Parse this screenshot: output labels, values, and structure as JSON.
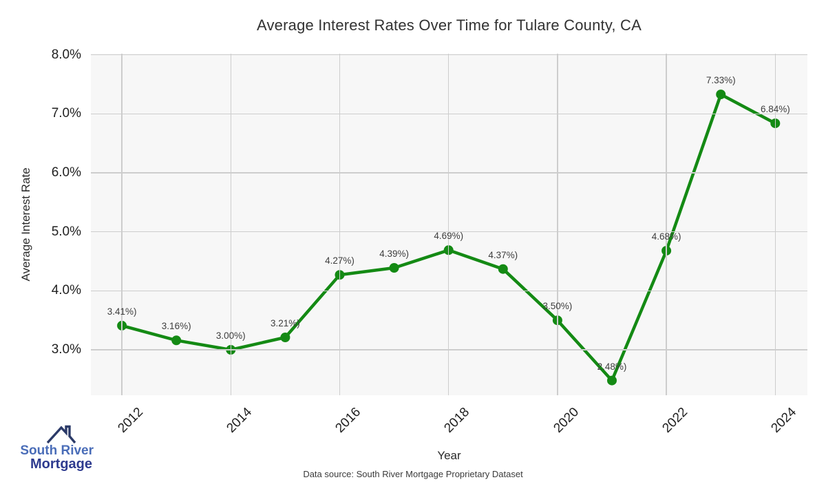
{
  "title": "Average Interest Rates Over Time for Tulare County, CA",
  "chart_data": {
    "type": "line",
    "x": [
      2012,
      2013,
      2014,
      2015,
      2016,
      2017,
      2018,
      2019,
      2020,
      2021,
      2022,
      2023,
      2024
    ],
    "values": [
      3.41,
      3.16,
      3.0,
      3.21,
      4.27,
      4.39,
      4.69,
      4.37,
      3.5,
      2.48,
      4.68,
      7.33,
      6.84
    ],
    "point_labels": [
      "3.41%)",
      "3.16%)",
      "3.00%)",
      "3.21%)",
      "4.27%)",
      "4.39%)",
      "4.69%)",
      "4.37%)",
      "3.50%)",
      "2.48%)",
      "4.68%)",
      "7.33%)",
      "6.84%)"
    ],
    "title": "Average Interest Rates Over Time for Tulare County, CA",
    "xlabel": "Year",
    "ylabel": "Average Interest Rate",
    "x_ticks": [
      2012,
      2014,
      2016,
      2018,
      2020,
      2022,
      2024
    ],
    "y_ticks": [
      3,
      4,
      5,
      6,
      7,
      8
    ],
    "y_tick_labels": [
      "3.0%",
      "4.0%",
      "5.0%",
      "6.0%",
      "7.0%",
      "8.0%"
    ],
    "xlim": [
      2011.43,
      2024.59
    ],
    "ylim": [
      2.23,
      8.02
    ],
    "grid": true,
    "legend": "none",
    "line_color": "#148a14",
    "marker_color": "#148a14",
    "plot_bg_color": "#f7f7f7",
    "grid_color": "#cdcdcd"
  },
  "footer": {
    "source": "Data source: South River Mortgage Proprietary Dataset"
  },
  "logo": {
    "icon": "house-roof-icon",
    "line1": "South River",
    "line2": "Mortgage",
    "line1_color": "#4a6db8",
    "line2_color": "#2e3b8f",
    "roof_color": "#2b3a68"
  }
}
